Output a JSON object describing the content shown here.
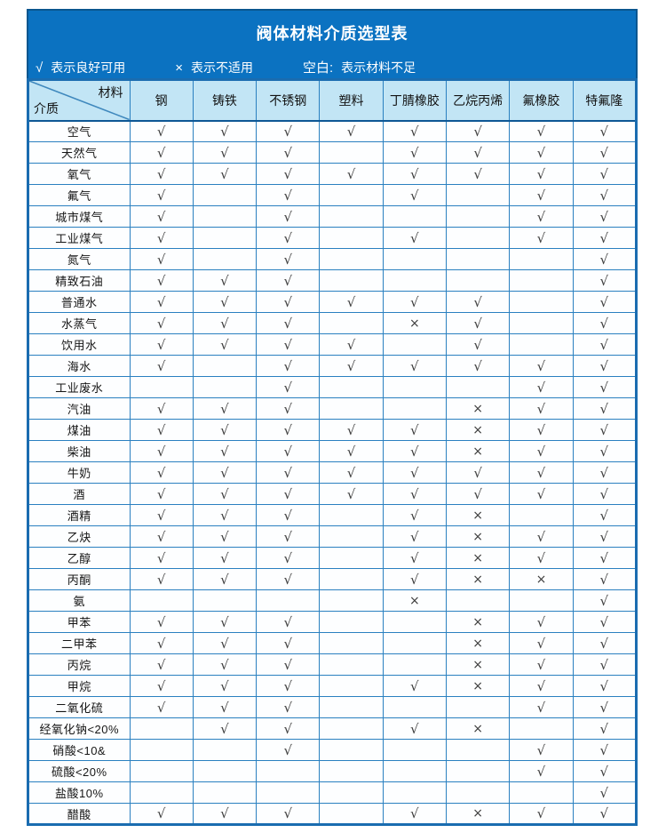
{
  "title": "阀体材料介质选型表",
  "legend": [
    {
      "symbol": "√",
      "text": "表示良好可用"
    },
    {
      "symbol": "×",
      "text": "表示不适用"
    },
    {
      "symbol": "空白:",
      "text": "表示材料不足"
    }
  ],
  "corner": {
    "top": "材料",
    "bottom": "介质"
  },
  "columns": [
    "钢",
    "铸铁",
    "不锈钢",
    "塑料",
    "丁腈橡胶",
    "乙烷丙烯",
    "氟橡胶",
    "特氟隆"
  ],
  "marks_key": {
    "good": "√",
    "unsuitable": "×",
    "insufficient": ""
  },
  "colors": {
    "title_bar_blue": "#0b72c1",
    "title_bar_border": "#0a568f",
    "header_bg": "#c2e5f5",
    "grid_border": "#2a80c0",
    "outer_border": "#1a6cb0",
    "mark_color": "#3e3e3e"
  },
  "rows": [
    {
      "label": "空气",
      "marks": [
        "√",
        "√",
        "√",
        "√",
        "√",
        "√",
        "√",
        "√"
      ]
    },
    {
      "label": "天然气",
      "marks": [
        "√",
        "√",
        "√",
        "",
        "√",
        "√",
        "√",
        "√"
      ]
    },
    {
      "label": "氧气",
      "marks": [
        "√",
        "√",
        "√",
        "√",
        "√",
        "√",
        "√",
        "√"
      ]
    },
    {
      "label": "氟气",
      "marks": [
        "√",
        "",
        "√",
        "",
        "√",
        "",
        "√",
        "√"
      ]
    },
    {
      "label": "城市煤气",
      "marks": [
        "√",
        "",
        "√",
        "",
        "",
        "",
        "√",
        "√"
      ]
    },
    {
      "label": "工业煤气",
      "marks": [
        "√",
        "",
        "√",
        "",
        "√",
        "",
        "√",
        "√"
      ]
    },
    {
      "label": "氮气",
      "marks": [
        "√",
        "",
        "√",
        "",
        "",
        "",
        "",
        "√"
      ]
    },
    {
      "label": "精致石油",
      "marks": [
        "√",
        "√",
        "√",
        "",
        "",
        "",
        "",
        "√"
      ]
    },
    {
      "label": "普通水",
      "marks": [
        "√",
        "√",
        "√",
        "√",
        "√",
        "√",
        "",
        "√"
      ]
    },
    {
      "label": "水蒸气",
      "marks": [
        "√",
        "√",
        "√",
        "",
        "×",
        "√",
        "",
        "√"
      ]
    },
    {
      "label": "饮用水",
      "marks": [
        "√",
        "√",
        "√",
        "√",
        "",
        "√",
        "",
        "√"
      ]
    },
    {
      "label": "海水",
      "marks": [
        "√",
        "",
        "√",
        "√",
        "√",
        "√",
        "√",
        "√"
      ]
    },
    {
      "label": "工业废水",
      "marks": [
        "",
        "",
        "√",
        "",
        "",
        "",
        "√",
        "√"
      ]
    },
    {
      "label": "汽油",
      "marks": [
        "√",
        "√",
        "√",
        "",
        "",
        "×",
        "√",
        "√"
      ]
    },
    {
      "label": "煤油",
      "marks": [
        "√",
        "√",
        "√",
        "√",
        "√",
        "×",
        "√",
        "√"
      ]
    },
    {
      "label": "柴油",
      "marks": [
        "√",
        "√",
        "√",
        "√",
        "√",
        "×",
        "√",
        "√"
      ]
    },
    {
      "label": "牛奶",
      "marks": [
        "√",
        "√",
        "√",
        "√",
        "√",
        "√",
        "√",
        "√"
      ]
    },
    {
      "label": "酒",
      "marks": [
        "√",
        "√",
        "√",
        "√",
        "√",
        "√",
        "√",
        "√"
      ]
    },
    {
      "label": "酒精",
      "marks": [
        "√",
        "√",
        "√",
        "",
        "√",
        "×",
        "",
        "√"
      ]
    },
    {
      "label": "乙炔",
      "marks": [
        "√",
        "√",
        "√",
        "",
        "√",
        "×",
        "√",
        "√"
      ]
    },
    {
      "label": "乙醇",
      "marks": [
        "√",
        "√",
        "√",
        "",
        "√",
        "×",
        "√",
        "√"
      ]
    },
    {
      "label": "丙酮",
      "marks": [
        "√",
        "√",
        "√",
        "",
        "√",
        "×",
        "×",
        "√"
      ]
    },
    {
      "label": "氨",
      "marks": [
        "",
        "",
        "",
        "",
        "×",
        "",
        "",
        "√"
      ]
    },
    {
      "label": "甲苯",
      "marks": [
        "√",
        "√",
        "√",
        "",
        "",
        "×",
        "√",
        "√"
      ]
    },
    {
      "label": "二甲苯",
      "marks": [
        "√",
        "√",
        "√",
        "",
        "",
        "×",
        "√",
        "√"
      ]
    },
    {
      "label": "丙烷",
      "marks": [
        "√",
        "√",
        "√",
        "",
        "",
        "×",
        "√",
        "√"
      ]
    },
    {
      "label": "甲烷",
      "marks": [
        "√",
        "√",
        "√",
        "",
        "√",
        "×",
        "√",
        "√"
      ]
    },
    {
      "label": "二氧化硫",
      "marks": [
        "√",
        "√",
        "√",
        "",
        "",
        "",
        "√",
        "√"
      ]
    },
    {
      "label": "经氧化钠<20%",
      "marks": [
        "",
        "√",
        "√",
        "",
        "√",
        "×",
        "",
        "√"
      ]
    },
    {
      "label": "硝酸<10&",
      "marks": [
        "",
        "",
        "√",
        "",
        "",
        "",
        "√",
        "√"
      ]
    },
    {
      "label": "硫酸<20%",
      "marks": [
        "",
        "",
        "",
        "",
        "",
        "",
        "√",
        "√"
      ]
    },
    {
      "label": "盐酸10%",
      "marks": [
        "",
        "",
        "",
        "",
        "",
        "",
        "",
        "√"
      ]
    },
    {
      "label": "醋酸",
      "marks": [
        "√",
        "√",
        "√",
        "",
        "√",
        "×",
        "√",
        "√"
      ]
    }
  ]
}
